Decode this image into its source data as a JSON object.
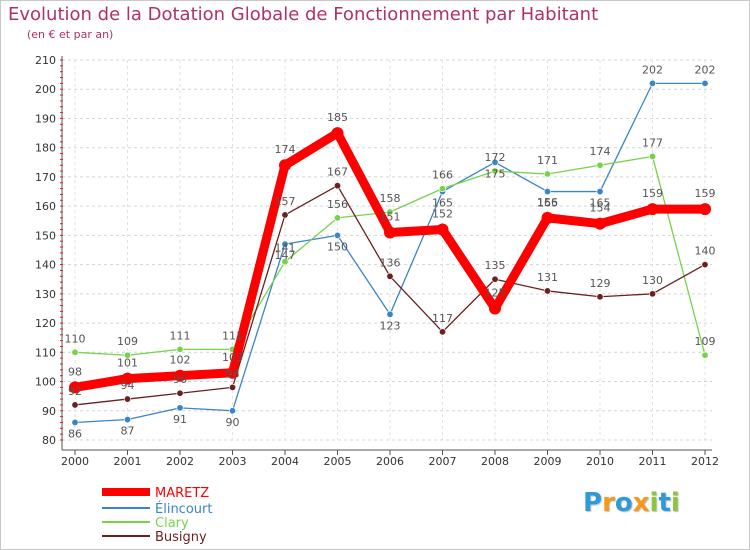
{
  "chart_data": {
    "type": "line",
    "title": "Evolution de la Dotation Globale de Fonctionnement par Habitant",
    "subtitle": "(en € et par an)",
    "xlabel": "",
    "ylabel": "",
    "x": [
      "2000",
      "2001",
      "2002",
      "2003",
      "2004",
      "2005",
      "2006",
      "2007",
      "2008",
      "2009",
      "2010",
      "2011",
      "2012"
    ],
    "ylim": [
      80,
      210
    ],
    "yticks": [
      80,
      90,
      100,
      110,
      120,
      130,
      140,
      150,
      160,
      170,
      180,
      190,
      200,
      210
    ],
    "grid": "horizontal dashed",
    "legend_position": "bottom-left",
    "series": [
      {
        "name": "MARETZ",
        "color": "#ff0000",
        "values": [
          98,
          101,
          102,
          103,
          174,
          185,
          151,
          152,
          125,
          156,
          154,
          159,
          159
        ]
      },
      {
        "name": "Élincourt",
        "color": "#3a84c8",
        "values": [
          86,
          87,
          91,
          90,
          147,
          150,
          123,
          165,
          175,
          165,
          165,
          202,
          202
        ]
      },
      {
        "name": "Clary",
        "color": "#77d24a",
        "values": [
          110,
          109,
          111,
          111,
          141,
          156,
          158,
          166,
          172,
          171,
          174,
          177,
          109
        ]
      },
      {
        "name": "Busigny",
        "color": "#6b1f1f",
        "values": [
          92,
          94,
          96,
          98,
          157,
          167,
          136,
          117,
          135,
          131,
          129,
          130,
          140
        ]
      }
    ]
  },
  "brand": {
    "letters": [
      "P",
      "r",
      "o",
      "x",
      "i",
      "t",
      "i"
    ],
    "colors": [
      "#2f9ad8",
      "#f39a1e",
      "#2f9ad8",
      "#f39a1e",
      "#8cc63f",
      "#2f9ad8",
      "#8cc63f"
    ]
  }
}
